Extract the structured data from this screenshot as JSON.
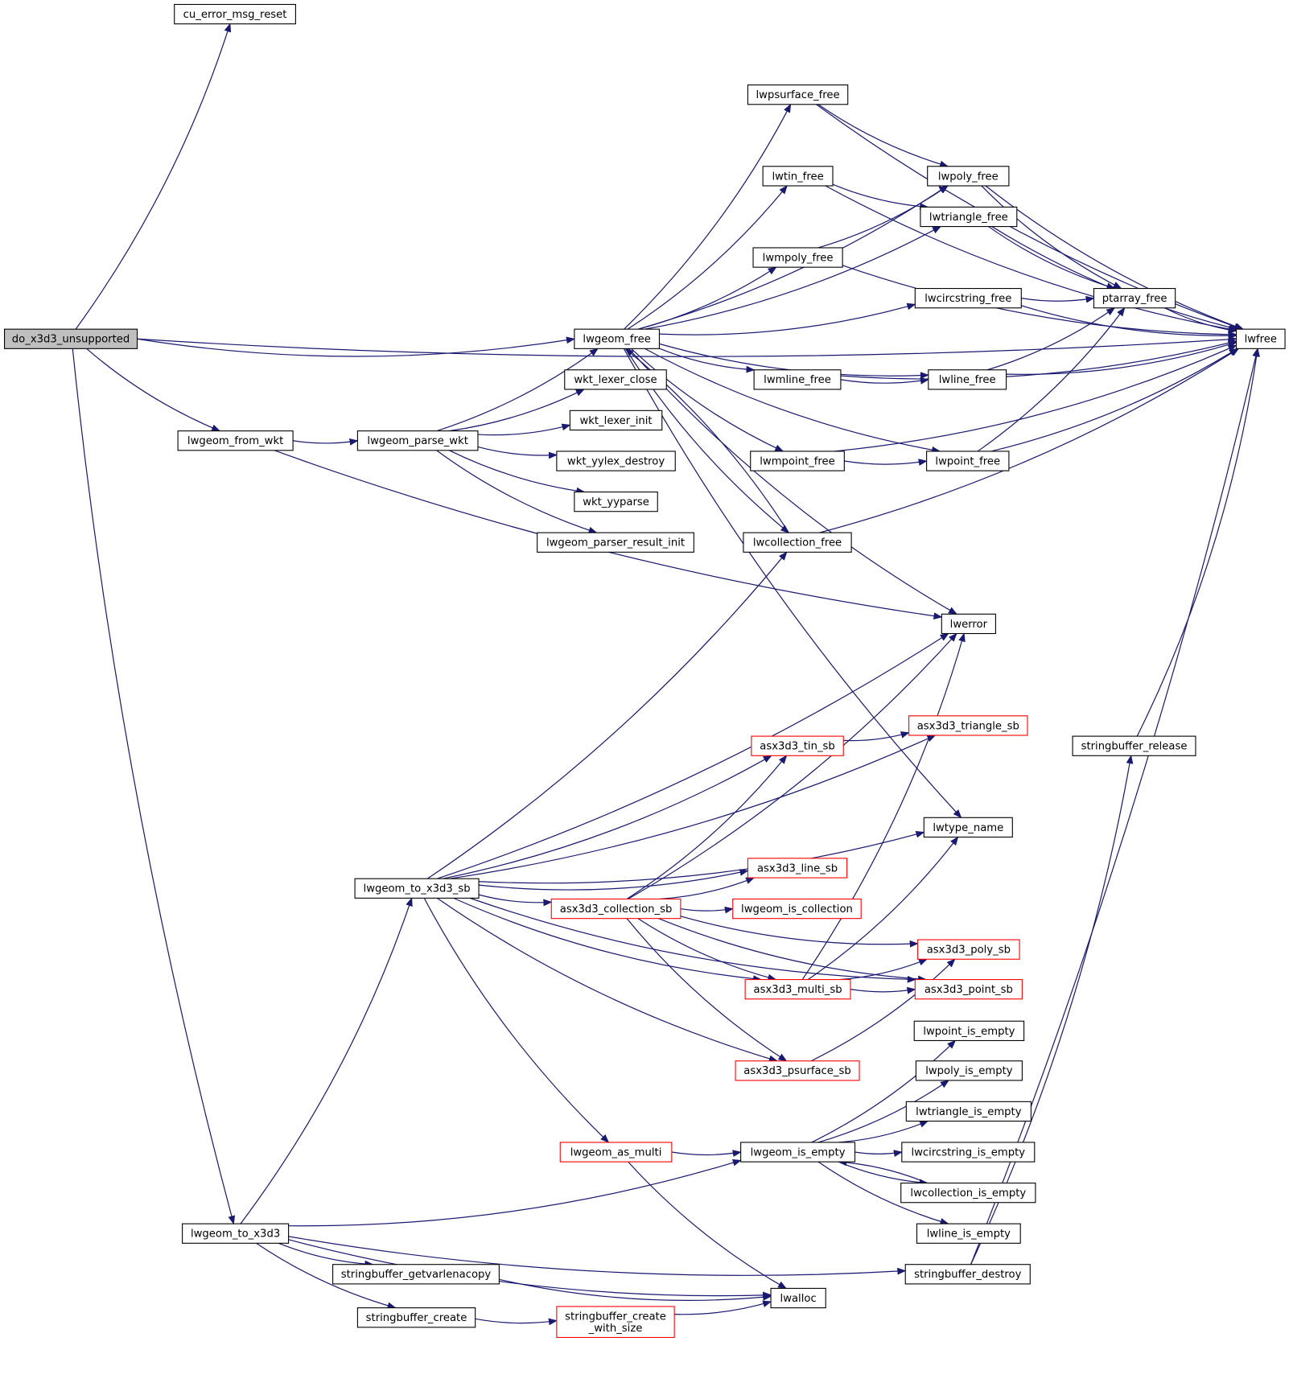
{
  "edge_color": "#191970",
  "highlight_color": "#ff0000",
  "root_fill": "#bfbfbf",
  "nodes": [
    {
      "id": "do_x3d3_unsupported",
      "label": [
        "do_x3d3_unsupported"
      ],
      "style": "root"
    },
    {
      "id": "cu_error_msg_reset",
      "label": [
        "cu_error_msg_reset"
      ],
      "style": "normal"
    },
    {
      "id": "lwgeom_free",
      "label": [
        "lwgeom_free"
      ],
      "style": "normal"
    },
    {
      "id": "lwgeom_from_wkt",
      "label": [
        "lwgeom_from_wkt"
      ],
      "style": "normal"
    },
    {
      "id": "lwgeom_parse_wkt",
      "label": [
        "lwgeom_parse_wkt"
      ],
      "style": "normal"
    },
    {
      "id": "wkt_lexer_close",
      "label": [
        "wkt_lexer_close"
      ],
      "style": "normal"
    },
    {
      "id": "wkt_lexer_init",
      "label": [
        "wkt_lexer_init"
      ],
      "style": "normal"
    },
    {
      "id": "wkt_yylex_destroy",
      "label": [
        "wkt_yylex_destroy"
      ],
      "style": "normal"
    },
    {
      "id": "wkt_yyparse",
      "label": [
        "wkt_yyparse"
      ],
      "style": "normal"
    },
    {
      "id": "lwgeom_parser_result_init",
      "label": [
        "lwgeom_parser_result_init"
      ],
      "style": "normal"
    },
    {
      "id": "lwpsurface_free",
      "label": [
        "lwpsurface_free"
      ],
      "style": "normal"
    },
    {
      "id": "lwtin_free",
      "label": [
        "lwtin_free"
      ],
      "style": "normal"
    },
    {
      "id": "lwmpoly_free",
      "label": [
        "lwmpoly_free"
      ],
      "style": "normal"
    },
    {
      "id": "lwmline_free",
      "label": [
        "lwmline_free"
      ],
      "style": "normal"
    },
    {
      "id": "lwmpoint_free",
      "label": [
        "lwmpoint_free"
      ],
      "style": "normal"
    },
    {
      "id": "lwcollection_free",
      "label": [
        "lwcollection_free"
      ],
      "style": "normal"
    },
    {
      "id": "lwpoly_free",
      "label": [
        "lwpoly_free"
      ],
      "style": "normal"
    },
    {
      "id": "lwtriangle_free",
      "label": [
        "lwtriangle_free"
      ],
      "style": "normal"
    },
    {
      "id": "lwcircstring_free",
      "label": [
        "lwcircstring_free"
      ],
      "style": "normal"
    },
    {
      "id": "lwline_free",
      "label": [
        "lwline_free"
      ],
      "style": "normal"
    },
    {
      "id": "lwpoint_free",
      "label": [
        "lwpoint_free"
      ],
      "style": "normal"
    },
    {
      "id": "ptarray_free",
      "label": [
        "ptarray_free"
      ],
      "style": "normal"
    },
    {
      "id": "lwfree",
      "label": [
        "lwfree"
      ],
      "style": "normal"
    },
    {
      "id": "lwerror",
      "label": [
        "lwerror"
      ],
      "style": "normal"
    },
    {
      "id": "lwtype_name",
      "label": [
        "lwtype_name"
      ],
      "style": "normal"
    },
    {
      "id": "asx3d3_triangle_sb",
      "label": [
        "asx3d3_triangle_sb"
      ],
      "style": "red"
    },
    {
      "id": "asx3d3_tin_sb",
      "label": [
        "asx3d3_tin_sb"
      ],
      "style": "red"
    },
    {
      "id": "asx3d3_line_sb",
      "label": [
        "asx3d3_line_sb"
      ],
      "style": "red"
    },
    {
      "id": "lwgeom_is_collection",
      "label": [
        "lwgeom_is_collection"
      ],
      "style": "red"
    },
    {
      "id": "asx3d3_collection_sb",
      "label": [
        "asx3d3_collection_sb"
      ],
      "style": "red"
    },
    {
      "id": "lwgeom_to_x3d3_sb",
      "label": [
        "lwgeom_to_x3d3_sb"
      ],
      "style": "normal"
    },
    {
      "id": "asx3d3_poly_sb",
      "label": [
        "asx3d3_poly_sb"
      ],
      "style": "red"
    },
    {
      "id": "asx3d3_multi_sb",
      "label": [
        "asx3d3_multi_sb"
      ],
      "style": "red"
    },
    {
      "id": "asx3d3_point_sb",
      "label": [
        "asx3d3_point_sb"
      ],
      "style": "red"
    },
    {
      "id": "asx3d3_psurface_sb",
      "label": [
        "asx3d3_psurface_sb"
      ],
      "style": "red"
    },
    {
      "id": "lwpoint_is_empty",
      "label": [
        "lwpoint_is_empty"
      ],
      "style": "normal"
    },
    {
      "id": "lwpoly_is_empty",
      "label": [
        "lwpoly_is_empty"
      ],
      "style": "normal"
    },
    {
      "id": "lwtriangle_is_empty",
      "label": [
        "lwtriangle_is_empty"
      ],
      "style": "normal"
    },
    {
      "id": "lwcircstring_is_empty",
      "label": [
        "lwcircstring_is_empty"
      ],
      "style": "normal"
    },
    {
      "id": "lwcollection_is_empty",
      "label": [
        "lwcollection_is_empty"
      ],
      "style": "normal"
    },
    {
      "id": "lwline_is_empty",
      "label": [
        "lwline_is_empty"
      ],
      "style": "normal"
    },
    {
      "id": "lwgeom_is_empty",
      "label": [
        "lwgeom_is_empty"
      ],
      "style": "normal"
    },
    {
      "id": "lwgeom_as_multi",
      "label": [
        "lwgeom_as_multi"
      ],
      "style": "red"
    },
    {
      "id": "lwgeom_to_x3d3",
      "label": [
        "lwgeom_to_x3d3"
      ],
      "style": "normal"
    },
    {
      "id": "stringbuffer_getvarlenacopy",
      "label": [
        "stringbuffer_getvarlenacopy"
      ],
      "style": "normal"
    },
    {
      "id": "stringbuffer_create",
      "label": [
        "stringbuffer_create"
      ],
      "style": "normal"
    },
    {
      "id": "stringbuffer_create_with_size",
      "label": [
        "stringbuffer_create",
        "_with_size"
      ],
      "style": "red"
    },
    {
      "id": "lwalloc",
      "label": [
        "lwalloc"
      ],
      "style": "normal"
    },
    {
      "id": "stringbuffer_destroy",
      "label": [
        "stringbuffer_destroy"
      ],
      "style": "normal"
    },
    {
      "id": "stringbuffer_release",
      "label": [
        "stringbuffer_release"
      ],
      "style": "normal"
    }
  ],
  "edges": [
    [
      "do_x3d3_unsupported",
      "cu_error_msg_reset"
    ],
    [
      "do_x3d3_unsupported",
      "lwfree"
    ],
    [
      "do_x3d3_unsupported",
      "lwgeom_free"
    ],
    [
      "do_x3d3_unsupported",
      "lwgeom_from_wkt"
    ],
    [
      "do_x3d3_unsupported",
      "lwgeom_to_x3d3"
    ],
    [
      "lwgeom_from_wkt",
      "lwgeom_parse_wkt"
    ],
    [
      "lwgeom_from_wkt",
      "lwerror"
    ],
    [
      "lwgeom_parse_wkt",
      "lwgeom_free"
    ],
    [
      "lwgeom_parse_wkt",
      "wkt_lexer_close"
    ],
    [
      "lwgeom_parse_wkt",
      "wkt_lexer_init"
    ],
    [
      "lwgeom_parse_wkt",
      "wkt_yylex_destroy"
    ],
    [
      "lwgeom_parse_wkt",
      "wkt_yyparse"
    ],
    [
      "lwgeom_parse_wkt",
      "lwgeom_parser_result_init"
    ],
    [
      "lwgeom_free",
      "lwpsurface_free"
    ],
    [
      "lwgeom_free",
      "lwpoly_free"
    ],
    [
      "lwgeom_free",
      "lwtin_free"
    ],
    [
      "lwgeom_free",
      "lwtriangle_free"
    ],
    [
      "lwgeom_free",
      "lwmpoly_free"
    ],
    [
      "lwgeom_free",
      "lwcircstring_free"
    ],
    [
      "lwgeom_free",
      "lwline_free"
    ],
    [
      "lwgeom_free",
      "lwmline_free"
    ],
    [
      "lwgeom_free",
      "lwpoint_free"
    ],
    [
      "lwgeom_free",
      "lwmpoint_free"
    ],
    [
      "lwgeom_free",
      "lwcollection_free"
    ],
    [
      "lwgeom_free",
      "lwerror"
    ],
    [
      "lwgeom_free",
      "lwtype_name"
    ],
    [
      "lwpsurface_free",
      "lwfree"
    ],
    [
      "lwpsurface_free",
      "lwpoly_free"
    ],
    [
      "lwtin_free",
      "lwfree"
    ],
    [
      "lwtin_free",
      "lwtriangle_free"
    ],
    [
      "lwmpoly_free",
      "lwpoly_free"
    ],
    [
      "lwmpoly_free",
      "lwfree"
    ],
    [
      "lwpoly_free",
      "ptarray_free"
    ],
    [
      "lwpoly_free",
      "lwfree"
    ],
    [
      "lwtriangle_free",
      "ptarray_free"
    ],
    [
      "lwtriangle_free",
      "lwfree"
    ],
    [
      "lwcircstring_free",
      "ptarray_free"
    ],
    [
      "lwcircstring_free",
      "lwfree"
    ],
    [
      "ptarray_free",
      "lwfree"
    ],
    [
      "lwline_free",
      "ptarray_free"
    ],
    [
      "lwline_free",
      "lwfree"
    ],
    [
      "lwmline_free",
      "lwline_free"
    ],
    [
      "lwmline_free",
      "lwfree"
    ],
    [
      "lwpoint_free",
      "ptarray_free"
    ],
    [
      "lwpoint_free",
      "lwfree"
    ],
    [
      "lwmpoint_free",
      "lwpoint_free"
    ],
    [
      "lwmpoint_free",
      "lwfree"
    ],
    [
      "lwcollection_free",
      "lwgeom_free"
    ],
    [
      "lwcollection_free",
      "lwfree"
    ],
    [
      "lwgeom_to_x3d3_sb",
      "lwcollection_free"
    ],
    [
      "lwgeom_to_x3d3_sb",
      "lwerror"
    ],
    [
      "lwgeom_to_x3d3_sb",
      "asx3d3_triangle_sb"
    ],
    [
      "lwgeom_to_x3d3_sb",
      "asx3d3_tin_sb"
    ],
    [
      "lwgeom_to_x3d3_sb",
      "lwtype_name"
    ],
    [
      "lwgeom_to_x3d3_sb",
      "asx3d3_line_sb"
    ],
    [
      "lwgeom_to_x3d3_sb",
      "asx3d3_collection_sb"
    ],
    [
      "lwgeom_to_x3d3_sb",
      "asx3d3_multi_sb"
    ],
    [
      "lwgeom_to_x3d3_sb",
      "asx3d3_psurface_sb"
    ],
    [
      "lwgeom_to_x3d3_sb",
      "asx3d3_point_sb"
    ],
    [
      "lwgeom_to_x3d3_sb",
      "lwgeom_as_multi"
    ],
    [
      "asx3d3_tin_sb",
      "asx3d3_triangle_sb"
    ],
    [
      "asx3d3_collection_sb",
      "asx3d3_tin_sb"
    ],
    [
      "asx3d3_collection_sb",
      "lwerror"
    ],
    [
      "asx3d3_collection_sb",
      "asx3d3_line_sb"
    ],
    [
      "asx3d3_collection_sb",
      "lwgeom_is_collection"
    ],
    [
      "asx3d3_collection_sb",
      "asx3d3_poly_sb"
    ],
    [
      "asx3d3_collection_sb",
      "asx3d3_multi_sb"
    ],
    [
      "asx3d3_collection_sb",
      "asx3d3_psurface_sb"
    ],
    [
      "asx3d3_collection_sb",
      "asx3d3_point_sb"
    ],
    [
      "asx3d3_multi_sb",
      "lwerror"
    ],
    [
      "asx3d3_multi_sb",
      "lwtype_name"
    ],
    [
      "asx3d3_multi_sb",
      "asx3d3_poly_sb"
    ],
    [
      "asx3d3_multi_sb",
      "asx3d3_point_sb"
    ],
    [
      "asx3d3_psurface_sb",
      "asx3d3_poly_sb"
    ],
    [
      "lwgeom_as_multi",
      "lwgeom_is_empty"
    ],
    [
      "lwgeom_as_multi",
      "lwalloc"
    ],
    [
      "lwgeom_is_empty",
      "lwpoint_is_empty"
    ],
    [
      "lwgeom_is_empty",
      "lwpoly_is_empty"
    ],
    [
      "lwgeom_is_empty",
      "lwtriangle_is_empty"
    ],
    [
      "lwgeom_is_empty",
      "lwcircstring_is_empty"
    ],
    [
      "lwgeom_is_empty",
      "lwcollection_is_empty"
    ],
    [
      "lwgeom_is_empty",
      "lwline_is_empty"
    ],
    [
      "lwcollection_is_empty",
      "lwgeom_is_empty"
    ],
    [
      "lwgeom_to_x3d3",
      "lwgeom_to_x3d3_sb"
    ],
    [
      "lwgeom_to_x3d3",
      "lwgeom_is_empty"
    ],
    [
      "lwgeom_to_x3d3",
      "stringbuffer_destroy"
    ],
    [
      "lwgeom_to_x3d3",
      "stringbuffer_getvarlenacopy"
    ],
    [
      "lwgeom_to_x3d3",
      "stringbuffer_create"
    ],
    [
      "lwgeom_to_x3d3",
      "lwalloc"
    ],
    [
      "stringbuffer_getvarlenacopy",
      "lwalloc"
    ],
    [
      "stringbuffer_create",
      "stringbuffer_create_with_size"
    ],
    [
      "stringbuffer_create_with_size",
      "lwalloc"
    ],
    [
      "stringbuffer_destroy",
      "stringbuffer_release"
    ],
    [
      "stringbuffer_destroy",
      "lwfree"
    ],
    [
      "stringbuffer_release",
      "lwfree"
    ]
  ]
}
